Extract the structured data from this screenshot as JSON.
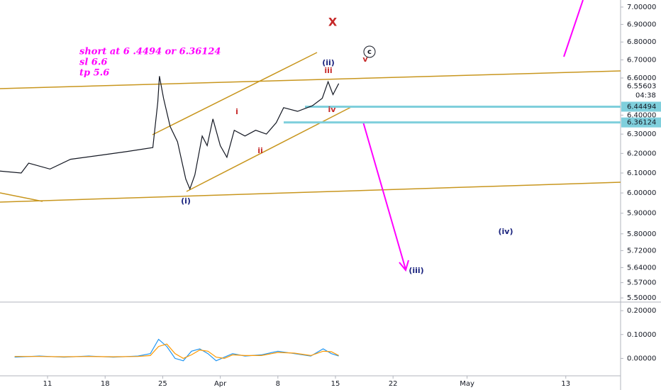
{
  "chart_data": [
    {
      "type": "line",
      "xlim": [
        5.22,
        80.66
      ],
      "xticks": [
        {
          "value": 11,
          "label": "11"
        },
        {
          "value": 18,
          "label": "18"
        },
        {
          "value": 25,
          "label": "25"
        },
        {
          "value": 32,
          "label": "Apr"
        },
        {
          "value": 39,
          "label": "8"
        },
        {
          "value": 46,
          "label": "15"
        },
        {
          "value": 53,
          "label": "22"
        },
        {
          "value": 62,
          "label": "May"
        },
        {
          "value": 74,
          "label": "13"
        }
      ],
      "ylim": [
        5.481,
        7.041
      ],
      "log_scale": true,
      "grid": false,
      "yticks": [
        {
          "value": 7.0,
          "label": "7.00000"
        },
        {
          "value": 6.9,
          "label": "6.90000"
        },
        {
          "value": 6.8,
          "label": "6.80000"
        },
        {
          "value": 6.7,
          "label": "6.70000"
        },
        {
          "value": 6.6,
          "label": "6.60000"
        },
        {
          "value": 6.4,
          "label": "6.40000"
        },
        {
          "value": 6.3,
          "label": "6.30000"
        },
        {
          "value": 6.2,
          "label": "6.20000"
        },
        {
          "value": 6.1,
          "label": "6.10000"
        },
        {
          "value": 6.0,
          "label": "6.00000"
        },
        {
          "value": 5.9,
          "label": "5.90000"
        },
        {
          "value": 5.8,
          "label": "5.80000"
        },
        {
          "value": 5.72,
          "label": "5.72000"
        },
        {
          "value": 5.64,
          "label": "5.64000"
        },
        {
          "value": 5.57,
          "label": "5.57000"
        },
        {
          "value": 5.5,
          "label": "5.50000"
        }
      ],
      "x": [
        5.2,
        7.8,
        8.7,
        11.3,
        13.8,
        17.3,
        20.7,
        23.8,
        24.4,
        24.6,
        25.1,
        25.9,
        26.8,
        27.8,
        28.3,
        28.9,
        29.8,
        30.4,
        31.1,
        32.0,
        32.8,
        33.7,
        35.0,
        36.3,
        37.6,
        38.8,
        39.7,
        41.4,
        43.2,
        44.4,
        45.1,
        45.7,
        46.4
      ],
      "series": [
        {
          "color": "#131722",
          "values": [
            6.11,
            6.1,
            6.15,
            6.12,
            6.17,
            6.19,
            6.21,
            6.23,
            6.47,
            6.61,
            6.49,
            6.34,
            6.26,
            6.07,
            6.02,
            6.09,
            6.29,
            6.24,
            6.38,
            6.24,
            6.18,
            6.32,
            6.29,
            6.32,
            6.3,
            6.36,
            6.44,
            6.42,
            6.45,
            6.49,
            6.58,
            6.51,
            6.57
          ]
        }
      ],
      "last_price": {
        "value": 6.55603,
        "label": "6.55603",
        "countdown": "04:38",
        "color": "#1e88e5"
      },
      "price_levels": [
        {
          "value": 6.44494,
          "label": "6.44494",
          "color": "#7fcfdc"
        },
        {
          "value": 6.36124,
          "label": "6.36124",
          "color": "#7fcfdc"
        }
      ],
      "note_lines": [
        "short at 6 .4494 or 6.36124",
        "sl 6.6",
        "tp 5.6"
      ],
      "note_color": "#ff00ff",
      "annotations": [
        {
          "text": "(i)",
          "color": "#1a237e"
        },
        {
          "text": "(ii)",
          "color": "#1a237e"
        },
        {
          "text": "(iii)",
          "color": "#1a237e"
        },
        {
          "text": "(iv)",
          "color": "#1a237e"
        },
        {
          "text": "i",
          "color": "#c62828"
        },
        {
          "text": "ii",
          "color": "#c62828"
        },
        {
          "text": "iii",
          "color": "#c62828"
        },
        {
          "text": "iv",
          "color": "#c62828"
        },
        {
          "text": "v",
          "color": "#c62828"
        },
        {
          "text": "c",
          "color": "#131722"
        },
        {
          "text": "X",
          "color": "#c62828"
        }
      ]
    },
    {
      "type": "line",
      "ylim": [
        -0.073,
        0.23
      ],
      "yticks": [
        {
          "value": 0.2,
          "label": "0.20000"
        },
        {
          "value": 0.1,
          "label": "0.10000"
        },
        {
          "value": 0.0,
          "label": "0.00000"
        }
      ],
      "x": [
        7,
        10,
        13,
        16,
        19,
        22,
        23.5,
        24.5,
        25.5,
        26.5,
        27.5,
        28.5,
        29.5,
        30.5,
        31.5,
        32.5,
        33.5,
        35,
        37,
        39,
        41,
        43,
        44.5,
        45.5,
        46.4
      ],
      "series": [
        {
          "color": "#2196f3",
          "values": [
            0.005,
            0.01,
            0.005,
            0.01,
            0.005,
            0.01,
            0.02,
            0.08,
            0.05,
            0.0,
            -0.01,
            0.03,
            0.04,
            0.02,
            -0.01,
            0.005,
            0.02,
            0.01,
            0.015,
            0.03,
            0.02,
            0.01,
            0.04,
            0.02,
            0.01
          ]
        },
        {
          "color": "#ff9800",
          "values": [
            0.008,
            0.008,
            0.007,
            0.008,
            0.007,
            0.008,
            0.012,
            0.05,
            0.06,
            0.02,
            0.0,
            0.015,
            0.035,
            0.03,
            0.005,
            0.0,
            0.015,
            0.012,
            0.012,
            0.025,
            0.022,
            0.012,
            0.03,
            0.028,
            0.012
          ]
        }
      ]
    }
  ]
}
